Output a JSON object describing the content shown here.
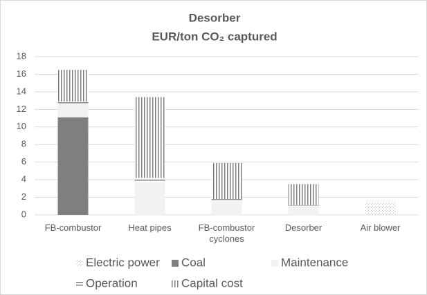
{
  "chart_data": {
    "type": "stacked_bar",
    "title": "Desorber",
    "subtitle": "EUR/ton CO₂ captured",
    "categories": [
      "FB-combustor",
      "Heat pipes",
      "FB-combustor cyclones",
      "Desorber",
      "Air blower"
    ],
    "series": [
      {
        "name": "Electric power",
        "color": "#bfbfbf",
        "pattern": "dots",
        "values": [
          0,
          0,
          0,
          0,
          1.4
        ]
      },
      {
        "name": "Coal",
        "color": "#7f7f7f",
        "pattern": "solid",
        "values": [
          11.1,
          0,
          0,
          0,
          0
        ]
      },
      {
        "name": "Maintenance",
        "color": "#f2f2f2",
        "pattern": "solid",
        "values": [
          1.6,
          3.7,
          1.6,
          1.0,
          0
        ]
      },
      {
        "name": "Operation",
        "color": "#7f7f7f",
        "pattern": "horizontal",
        "values": [
          0.2,
          0.5,
          0.2,
          0.1,
          0
        ]
      },
      {
        "name": "Capital cost",
        "color": "#7f7f7f",
        "pattern": "vertical",
        "values": [
          3.6,
          9.2,
          4.1,
          2.4,
          0
        ]
      }
    ],
    "ylim": [
      0,
      18
    ],
    "yticks": [
      0,
      2,
      4,
      6,
      8,
      10,
      12,
      14,
      16,
      18
    ],
    "grid": true
  }
}
